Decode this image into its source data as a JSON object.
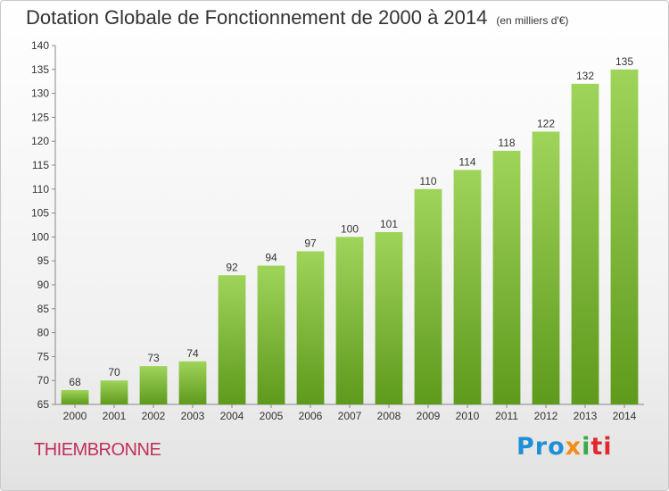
{
  "chart_data": {
    "type": "bar",
    "title": "Dotation Globale de Fonctionnement de 2000 à 2014",
    "subtitle": "(en milliers d'€)",
    "categories": [
      "2000",
      "2001",
      "2002",
      "2003",
      "2004",
      "2005",
      "2006",
      "2007",
      "2008",
      "2009",
      "2010",
      "2011",
      "2012",
      "2013",
      "2014"
    ],
    "values": [
      68,
      70,
      73,
      74,
      92,
      94,
      97,
      100,
      101,
      110,
      114,
      118,
      122,
      132,
      135
    ],
    "ylim": [
      65,
      140
    ],
    "yticks": [
      65,
      70,
      75,
      80,
      85,
      90,
      95,
      100,
      105,
      110,
      115,
      120,
      125,
      130,
      135,
      140
    ],
    "grid": false,
    "bar_color": "#7ab830",
    "bar_color_light": "#9fd45a",
    "bar_color_dark": "#5e9a1c"
  },
  "commune": "THIEMBRONNE",
  "logo": {
    "l1": "Pro",
    "l2": "x",
    "l3": "i",
    "l4": "ti"
  }
}
